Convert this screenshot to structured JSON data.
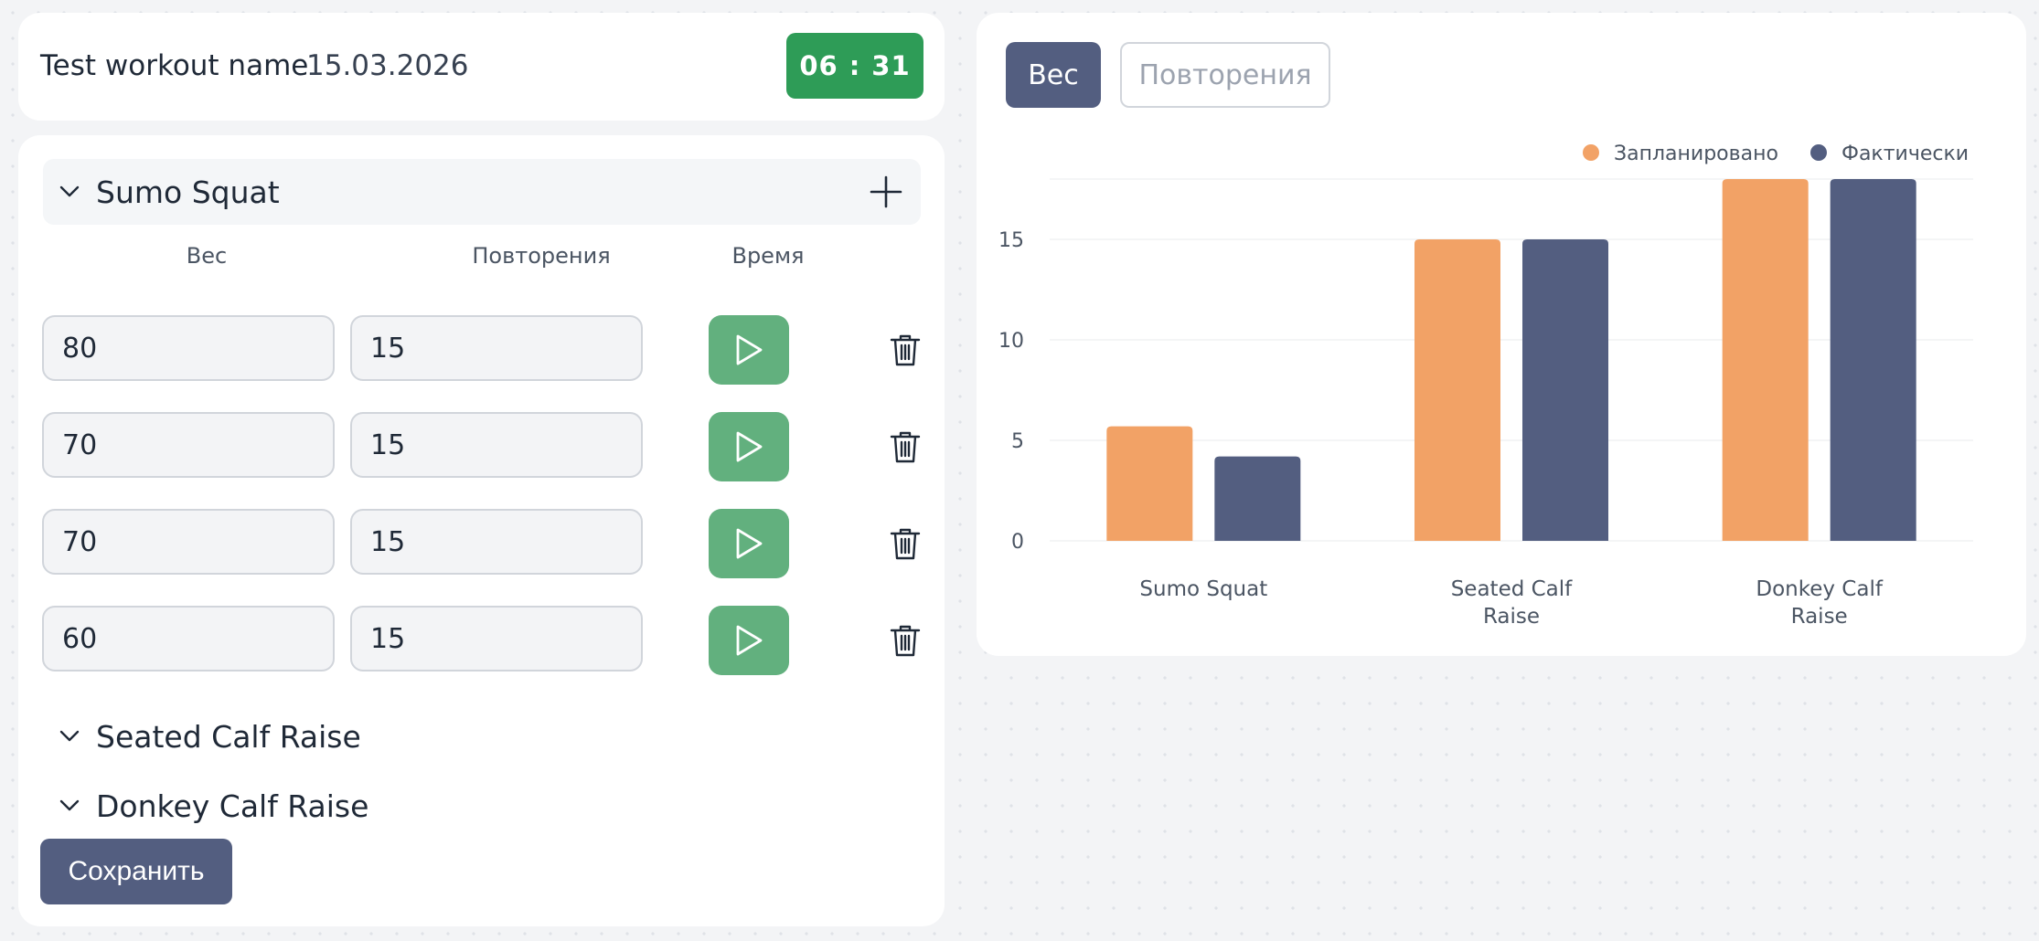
{
  "header": {
    "workout_name": "Test workout name",
    "date": "15.03.2026",
    "timer_minutes": "06",
    "timer_separator": ":",
    "timer_seconds": "31"
  },
  "columns": {
    "weight": "Вес",
    "reps": "Повторения",
    "time": "Время"
  },
  "exercises": [
    {
      "name": "Sumo Squat",
      "expanded": true,
      "sets": [
        {
          "weight": "80",
          "reps": "15"
        },
        {
          "weight": "70",
          "reps": "15"
        },
        {
          "weight": "70",
          "reps": "15"
        },
        {
          "weight": "60",
          "reps": "15"
        }
      ]
    },
    {
      "name": "Seated Calf Raise",
      "expanded": false
    },
    {
      "name": "Donkey Calf Raise",
      "expanded": false
    }
  ],
  "save_label": "Сохранить",
  "tabs": {
    "weight": "Вес",
    "reps": "Повторения",
    "active": "weight"
  },
  "colors": {
    "planned": "#f2a266",
    "actual": "#535e80",
    "timer": "#2e9c57",
    "play": "#62b07e"
  },
  "icons": {
    "chevron": "chevron-down-icon",
    "add": "plus-icon",
    "play": "play-icon",
    "delete": "trash-icon"
  },
  "chart_data": {
    "type": "bar",
    "categories": [
      [
        "Sumo Squat"
      ],
      [
        "Seated Calf",
        "Raise"
      ],
      [
        "Donkey Calf",
        "Raise"
      ]
    ],
    "series": [
      {
        "name": "Запланировано",
        "values": [
          5.7,
          15,
          18
        ]
      },
      {
        "name": "Фактически",
        "values": [
          4.2,
          15,
          18
        ]
      }
    ],
    "ylim": [
      0,
      18
    ],
    "yticks": [
      0,
      5,
      10,
      15
    ],
    "legend": "top-right",
    "grid": true
  }
}
